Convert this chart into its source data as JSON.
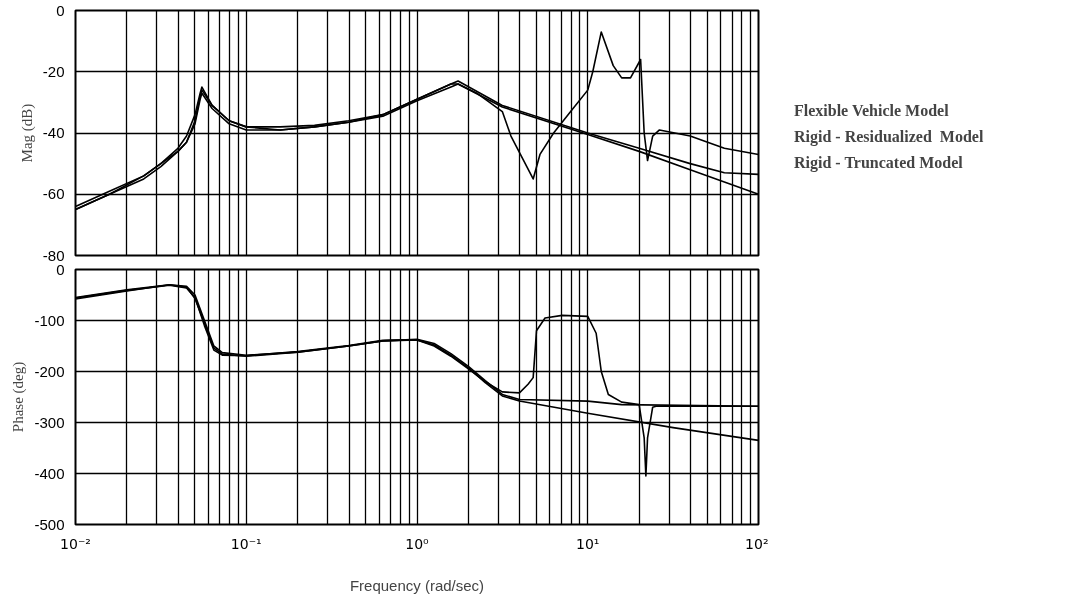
{
  "chart_data": [
    {
      "type": "line",
      "ylabel": "Mag (dB)",
      "xlim": [
        0.01,
        100
      ],
      "ylim": [
        -80,
        0
      ],
      "log": "x",
      "grid": true,
      "legend": "right",
      "tick_labels": "y",
      "line_style": "solid",
      "xticks": [
        {
          "value": 0.01,
          "label": null
        },
        {
          "value": 0.1,
          "label": null
        },
        {
          "value": 1,
          "label": null
        },
        {
          "value": 10,
          "label": null
        },
        {
          "value": 100,
          "label": null
        }
      ],
      "yticks": [
        0,
        -20,
        -40,
        -60,
        -80
      ],
      "series": [
        {
          "name": "Flexible Vehicle Model",
          "color": "#000000",
          "x": [
            0.01,
            0.0158,
            0.0251,
            0.0316,
            0.0398,
            0.0447,
            0.0501,
            0.0537,
            0.055,
            0.0631,
            0.0794,
            0.1,
            0.158,
            0.251,
            0.398,
            0.631,
            1,
            1.58,
            1.74,
            2.24,
            3.16,
            3.55,
            4.79,
            5.25,
            6.31,
            7.94,
            10,
            10.7,
            12.0,
            14.1,
            15.8,
            17.8,
            20.4,
            21.4,
            22.4,
            24.0,
            26.3,
            39.8,
            63.1,
            100
          ],
          "values": [
            -65,
            -60,
            -54,
            -50,
            -45,
            -41,
            -34,
            -27,
            -25,
            -31,
            -36,
            -38,
            -39,
            -38,
            -36.5,
            -34,
            -29,
            -24,
            -24,
            -27,
            -33,
            -41,
            -55,
            -47,
            -40,
            -33,
            -26,
            -20,
            -7,
            -18,
            -22,
            -22,
            -16,
            -40,
            -49,
            -41,
            -39,
            -41,
            -45,
            -47
          ]
        },
        {
          "name": "Rigid - Residualized  Model",
          "color": "#000000",
          "x": [
            0.01,
            0.0158,
            0.0251,
            0.0316,
            0.0398,
            0.0447,
            0.0501,
            0.0537,
            0.055,
            0.0631,
            0.0794,
            0.1,
            0.158,
            0.251,
            0.398,
            0.631,
            1,
            1.58,
            1.74,
            3.16,
            10,
            20,
            39.8,
            63.1,
            100
          ],
          "values": [
            -64,
            -59,
            -54,
            -50,
            -46,
            -43,
            -36,
            -28,
            -26,
            -31,
            -36,
            -38,
            -38,
            -37.5,
            -36,
            -34,
            -29,
            -24,
            -23,
            -31,
            -40,
            -45,
            -50,
            -53,
            -53.5
          ]
        },
        {
          "name": "Rigid - Truncated Model",
          "color": "#000000",
          "x": [
            0.01,
            0.0158,
            0.0251,
            0.0316,
            0.0398,
            0.0447,
            0.0501,
            0.0537,
            0.055,
            0.0631,
            0.0794,
            0.1,
            0.158,
            0.251,
            0.398,
            0.631,
            1,
            1.58,
            1.74,
            3.16,
            10,
            20,
            39.8,
            63.1,
            100
          ],
          "values": [
            -65,
            -60,
            -55,
            -51,
            -46,
            -43,
            -37,
            -29,
            -27,
            -32,
            -37,
            -39,
            -39,
            -38,
            -36.5,
            -34.5,
            -29.5,
            -25,
            -24,
            -31.5,
            -40.5,
            -46,
            -52,
            -56,
            -60
          ]
        }
      ]
    },
    {
      "type": "line",
      "ylabel": "Phase (deg)",
      "xlabel": "Frequency (rad/sec)",
      "xlim": [
        0.01,
        100
      ],
      "ylim": [
        -500,
        0
      ],
      "log": "x",
      "grid": true,
      "line_style": "solid",
      "xticks": [
        {
          "value": 0.01,
          "label": "10⁻²"
        },
        {
          "value": 0.1,
          "label": "10⁻¹"
        },
        {
          "value": 1,
          "label": "10⁰"
        },
        {
          "value": 10,
          "label": "10¹"
        },
        {
          "value": 100,
          "label": "10²"
        }
      ],
      "yticks": [
        0,
        -100,
        -200,
        -300,
        -400,
        -500
      ],
      "series": [
        {
          "color": "#000000",
          "x": [
            0.01,
            0.02,
            0.0355,
            0.0447,
            0.0501,
            0.0569,
            0.0646,
            0.0724,
            0.1,
            0.2,
            0.398,
            0.631,
            1,
            1.26,
            1.58,
            2.0,
            2.51,
            3.16,
            3.98,
            4.47,
            4.79,
            5.01,
            5.62,
            7.08,
            10,
            11.2,
            12.0,
            13.2,
            15.8,
            20.0,
            21.4,
            21.9,
            22.4,
            24.0,
            25.1,
            39.8,
            100
          ],
          "values": [
            -55,
            -40,
            -30,
            -35,
            -57,
            -105,
            -154,
            -166,
            -170,
            -162,
            -150,
            -140,
            -138,
            -150,
            -170,
            -195,
            -220,
            -240,
            -242,
            -225,
            -212,
            -120,
            -95,
            -90,
            -92,
            -125,
            -200,
            -245,
            -260,
            -265,
            -330,
            -405,
            -330,
            -270,
            -268,
            -268,
            -268
          ]
        },
        {
          "color": "#000000",
          "x": [
            0.01,
            0.02,
            0.0355,
            0.0447,
            0.0501,
            0.0569,
            0.0646,
            0.0724,
            0.1,
            0.2,
            0.398,
            0.631,
            1,
            1.26,
            1.58,
            2.0,
            2.51,
            3.16,
            3.98,
            10,
            15.8,
            100
          ],
          "values": [
            -58,
            -42,
            -30,
            -33,
            -50,
            -100,
            -150,
            -163,
            -168,
            -162,
            -150,
            -140,
            -137,
            -145,
            -165,
            -190,
            -218,
            -245,
            -255,
            -258,
            -265,
            -268
          ]
        },
        {
          "color": "#000000",
          "x": [
            0.01,
            0.02,
            0.0355,
            0.0447,
            0.0501,
            0.0569,
            0.0646,
            0.0724,
            0.1,
            0.2,
            0.398,
            0.631,
            1,
            1.26,
            1.58,
            2.0,
            2.51,
            3.16,
            3.98,
            10,
            31.6,
            100
          ],
          "values": [
            -56,
            -41,
            -31,
            -36,
            -55,
            -110,
            -158,
            -168,
            -169,
            -161,
            -149,
            -139,
            -138,
            -148,
            -168,
            -193,
            -222,
            -248,
            -258,
            -282,
            -310,
            -335
          ]
        }
      ]
    }
  ]
}
